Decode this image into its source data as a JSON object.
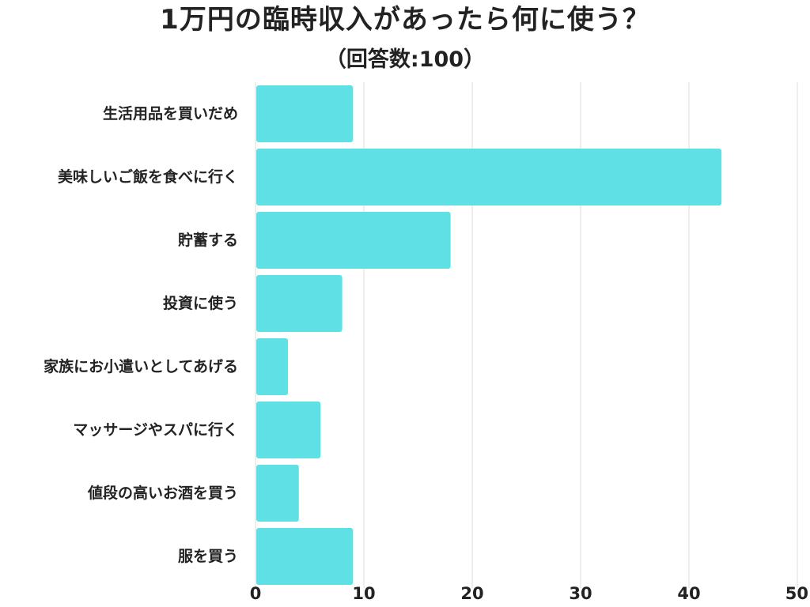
{
  "title": "1万円の臨時収入があったら何に使う？",
  "subtitle": "（回答数:100）",
  "chart_data": {
    "type": "bar",
    "orientation": "horizontal",
    "title": "1万円の臨時収入があったら何に使う？",
    "subtitle": "（回答数:100）",
    "xlabel": "",
    "ylabel": "",
    "categories": [
      "生活用品を買いだめ",
      "美味しいご飯を食べに行く",
      "貯蓄する",
      "投資に使う",
      "家族にお小遣いとしてあげる",
      "マッサージやスパに行く",
      "値段の高いお酒を買う",
      "服を買う"
    ],
    "values": [
      9,
      43,
      18,
      8,
      3,
      6,
      4,
      9
    ],
    "xlim": [
      0,
      50
    ],
    "xticks": [
      0,
      10,
      20,
      30,
      40,
      50
    ],
    "grid": true,
    "legend": "none",
    "bar_color": "#5fe0e4",
    "grid_color": "#dddddd"
  }
}
